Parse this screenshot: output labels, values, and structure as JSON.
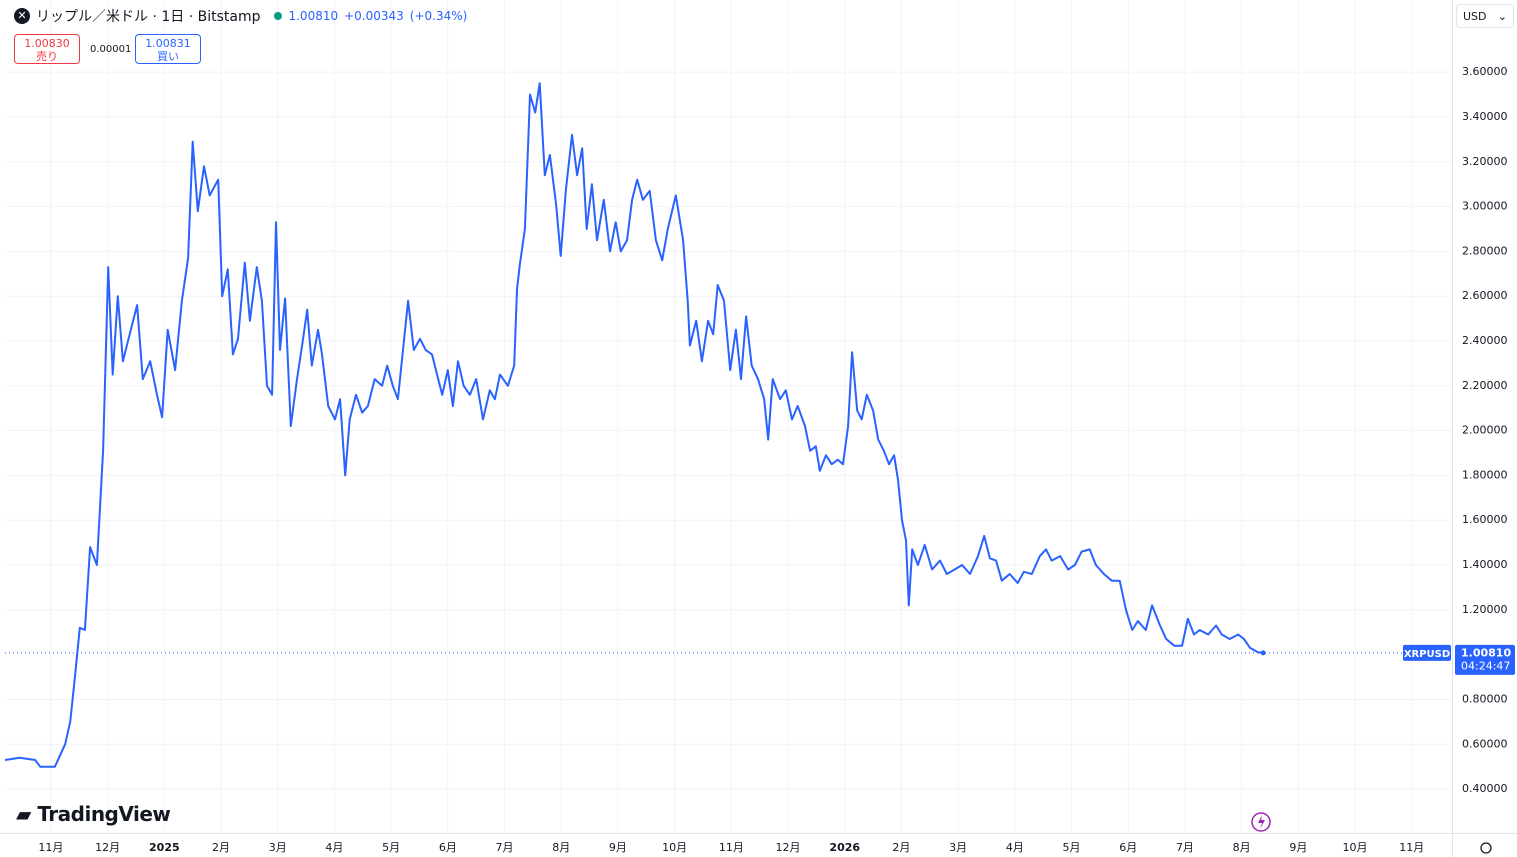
{
  "header": {
    "title": "リップル／米ドル · 1日 · Bitstamp",
    "change": "+0.00343",
    "change_pct": "(+0.34%)"
  },
  "order_panel": {
    "sell_price": "1.00830",
    "sell_label": "売り",
    "spread": "0.00001",
    "buy_price": "1.00831",
    "buy_label": "買い"
  },
  "currency": "USD",
  "branding": "TradingView",
  "chart_data": {
    "type": "line",
    "countdown": "04:24:47",
    "last_price": {
      "value": 1.0081,
      "label": "1.00810"
    },
    "x": [
      -0.81,
      -0.55,
      -0.28,
      -0.19,
      0.07,
      0.25,
      0.34,
      0.42,
      0.51,
      0.6,
      0.69,
      0.81,
      0.92,
      1.01,
      1.09,
      1.18,
      1.27,
      1.39,
      1.52,
      1.62,
      1.75,
      1.87,
      1.96,
      2.06,
      2.19,
      2.31,
      2.42,
      2.5,
      2.59,
      2.7,
      2.8,
      2.95,
      3.02,
      3.12,
      3.21,
      3.3,
      3.42,
      3.51,
      3.63,
      3.72,
      3.81,
      3.9,
      3.97,
      4.04,
      4.13,
      4.23,
      4.34,
      4.43,
      4.52,
      4.6,
      4.71,
      4.78,
      4.89,
      5.01,
      5.1,
      5.19,
      5.27,
      5.38,
      5.49,
      5.59,
      5.71,
      5.84,
      5.93,
      6.03,
      6.12,
      6.21,
      6.3,
      6.4,
      6.51,
      6.61,
      6.72,
      6.83,
      6.9,
      7.0,
      7.09,
      7.18,
      7.28,
      7.39,
      7.5,
      7.62,
      7.74,
      7.83,
      7.92,
      8.06,
      8.17,
      8.22,
      8.27,
      8.36,
      8.45,
      8.54,
      8.62,
      8.71,
      8.8,
      8.91,
      8.99,
      9.08,
      9.19,
      9.28,
      9.37,
      9.45,
      9.54,
      9.63,
      9.75,
      9.86,
      9.96,
      10.05,
      10.16,
      10.25,
      10.34,
      10.44,
      10.56,
      10.67,
      10.78,
      10.88,
      11.02,
      11.15,
      11.23,
      11.27,
      11.38,
      11.48,
      11.59,
      11.68,
      11.76,
      11.87,
      11.98,
      12.08,
      12.17,
      12.26,
      12.36,
      12.47,
      12.58,
      12.65,
      12.73,
      12.86,
      12.96,
      13.07,
      13.17,
      13.3,
      13.39,
      13.49,
      13.56,
      13.67,
      13.77,
      13.88,
      13.97,
      14.06,
      14.13,
      14.22,
      14.3,
      14.39,
      14.5,
      14.59,
      14.69,
      14.78,
      14.87,
      14.94,
      15.01,
      15.08,
      15.13,
      15.19,
      15.29,
      15.41,
      15.54,
      15.68,
      15.8,
      15.94,
      16.07,
      16.21,
      16.35,
      16.46,
      16.56,
      16.67,
      16.77,
      16.91,
      17.05,
      17.16,
      17.3,
      17.44,
      17.55,
      17.65,
      17.8,
      17.94,
      18.06,
      18.18,
      18.32,
      18.43,
      18.57,
      18.71,
      18.85,
      18.96,
      19.07,
      19.17,
      19.31,
      19.42,
      19.56,
      19.67,
      19.81,
      19.95,
      20.05,
      20.16,
      20.26,
      20.41,
      20.55,
      20.65,
      20.79,
      20.94,
      21.04,
      21.15,
      21.29,
      21.38
    ],
    "series": [
      {
        "name": "XRPUSD",
        "color": "#2962ff",
        "values": [
          0.53,
          0.54,
          0.53,
          0.5,
          0.5,
          0.6,
          0.7,
          0.89,
          1.12,
          1.11,
          1.48,
          1.4,
          1.91,
          2.73,
          2.25,
          2.6,
          2.31,
          2.43,
          2.56,
          2.23,
          2.31,
          2.16,
          2.06,
          2.45,
          2.27,
          2.58,
          2.77,
          3.29,
          2.98,
          3.18,
          3.05,
          3.12,
          2.6,
          2.72,
          2.34,
          2.41,
          2.75,
          2.49,
          2.73,
          2.58,
          2.2,
          2.16,
          2.93,
          2.36,
          2.59,
          2.02,
          2.23,
          2.38,
          2.54,
          2.29,
          2.45,
          2.34,
          2.11,
          2.05,
          2.14,
          1.8,
          2.05,
          2.16,
          2.08,
          2.11,
          2.23,
          2.2,
          2.29,
          2.2,
          2.14,
          2.36,
          2.58,
          2.36,
          2.41,
          2.36,
          2.34,
          2.23,
          2.16,
          2.27,
          2.11,
          2.31,
          2.2,
          2.16,
          2.23,
          2.05,
          2.18,
          2.14,
          2.25,
          2.2,
          2.29,
          2.63,
          2.74,
          2.9,
          3.5,
          3.42,
          3.55,
          3.14,
          3.23,
          3.01,
          2.78,
          3.07,
          3.32,
          3.14,
          3.26,
          2.9,
          3.1,
          2.85,
          3.03,
          2.8,
          2.93,
          2.8,
          2.85,
          3.03,
          3.12,
          3.03,
          3.07,
          2.85,
          2.76,
          2.9,
          3.05,
          2.85,
          2.58,
          2.38,
          2.49,
          2.31,
          2.49,
          2.43,
          2.65,
          2.58,
          2.27,
          2.45,
          2.23,
          2.51,
          2.29,
          2.23,
          2.14,
          1.96,
          2.23,
          2.14,
          2.18,
          2.05,
          2.11,
          2.02,
          1.91,
          1.93,
          1.82,
          1.89,
          1.85,
          1.87,
          1.85,
          2.02,
          2.35,
          2.09,
          2.05,
          2.16,
          2.09,
          1.96,
          1.91,
          1.85,
          1.89,
          1.78,
          1.6,
          1.51,
          1.22,
          1.47,
          1.4,
          1.49,
          1.38,
          1.42,
          1.36,
          1.38,
          1.4,
          1.36,
          1.44,
          1.53,
          1.43,
          1.42,
          1.33,
          1.36,
          1.32,
          1.37,
          1.36,
          1.44,
          1.47,
          1.42,
          1.44,
          1.38,
          1.4,
          1.46,
          1.47,
          1.4,
          1.36,
          1.33,
          1.33,
          1.2,
          1.11,
          1.15,
          1.11,
          1.22,
          1.13,
          1.07,
          1.04,
          1.04,
          1.16,
          1.09,
          1.11,
          1.09,
          1.13,
          1.09,
          1.07,
          1.09,
          1.07,
          1.03,
          1.01,
          1.0081
        ]
      }
    ],
    "xlim": [
      -0.81,
      24.71
    ],
    "ylim": [
      0.204,
      3.922
    ],
    "xticks": [
      {
        "value": 0,
        "label": "11月"
      },
      {
        "value": 1,
        "label": "12月"
      },
      {
        "value": 2,
        "label": "2025"
      },
      {
        "value": 3,
        "label": "2月"
      },
      {
        "value": 4,
        "label": "3月"
      },
      {
        "value": 5,
        "label": "4月"
      },
      {
        "value": 6,
        "label": "5月"
      },
      {
        "value": 7,
        "label": "6月"
      },
      {
        "value": 8,
        "label": "7月"
      },
      {
        "value": 9,
        "label": "8月"
      },
      {
        "value": 10,
        "label": "9月"
      },
      {
        "value": 11,
        "label": "10月"
      },
      {
        "value": 12,
        "label": "11月"
      },
      {
        "value": 13,
        "label": "12月"
      },
      {
        "value": 14,
        "label": "2026"
      },
      {
        "value": 15,
        "label": "2月"
      },
      {
        "value": 16,
        "label": "3月"
      },
      {
        "value": 17,
        "label": "4月"
      },
      {
        "value": 18,
        "label": "5月"
      },
      {
        "value": 19,
        "label": "6月"
      },
      {
        "value": 20,
        "label": "7月"
      },
      {
        "value": 21,
        "label": "8月"
      },
      {
        "value": 22,
        "label": "9月"
      },
      {
        "value": 23,
        "label": "10月"
      },
      {
        "value": 24,
        "label": "11月"
      }
    ],
    "yticks": [
      {
        "value": 0.4,
        "label": "0.40000"
      },
      {
        "value": 0.6,
        "label": "0.60000"
      },
      {
        "value": 0.8,
        "label": "0.80000"
      },
      {
        "value": 1.2,
        "label": "1.20000"
      },
      {
        "value": 1.4,
        "label": "1.40000"
      },
      {
        "value": 1.6,
        "label": "1.60000"
      },
      {
        "value": 1.8,
        "label": "1.80000"
      },
      {
        "value": 2.0,
        "label": "2.00000"
      },
      {
        "value": 2.2,
        "label": "2.20000"
      },
      {
        "value": 2.4,
        "label": "2.40000"
      },
      {
        "value": 2.6,
        "label": "2.60000"
      },
      {
        "value": 2.8,
        "label": "2.80000"
      },
      {
        "value": 3.0,
        "label": "3.00000"
      },
      {
        "value": 3.2,
        "label": "3.20000"
      },
      {
        "value": 3.4,
        "label": "3.40000"
      },
      {
        "value": 3.6,
        "label": "3.60000"
      }
    ],
    "grid": true
  }
}
